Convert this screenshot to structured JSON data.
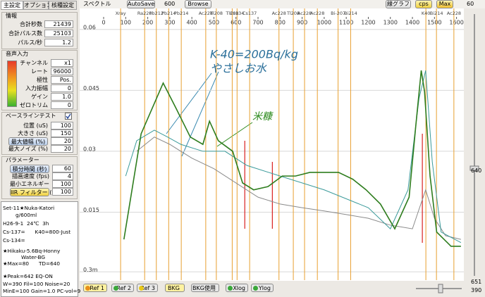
{
  "tabs": [
    "主設定",
    "オプション",
    "核種設定"
  ],
  "info": {
    "title": "情報",
    "rows": [
      [
        "合計秒数",
        "21439"
      ],
      [
        "合計パルス数",
        "25103"
      ],
      [
        "パルス/秒",
        "1.2"
      ]
    ]
  },
  "audio": {
    "title": "音声入力",
    "rows": [
      [
        "チャンネル",
        "x1"
      ],
      [
        "レート",
        "96000"
      ],
      [
        "極性",
        "Pos."
      ],
      [
        "入力振幅",
        "0"
      ],
      [
        "ゲイン",
        "1.0"
      ],
      [
        "ゼロトリム",
        "0"
      ]
    ]
  },
  "baseline": {
    "title": "ベースラインテスト",
    "rows": [
      [
        "位置 (uS)",
        "100"
      ],
      [
        "大きさ (uS)",
        "150"
      ],
      [
        "最大値幅 (%)",
        "20"
      ],
      [
        "最大ノイズ (%)",
        "20"
      ]
    ]
  },
  "params": {
    "title": "パラメーター",
    "rows": [
      [
        "積分時間 (秒)",
        "60"
      ],
      [
        "描画速度 (fps)",
        "4"
      ],
      [
        "最小エネルギー",
        "100"
      ],
      [
        "IIR フィルター (%)",
        "100"
      ]
    ]
  },
  "memo": [
    "Set-11★Nuka-Katori",
    "g/600ml",
    "H26-9-1  24℃  3h",
    "Cs-137=      K40=800-Just",
    "Cs-134=",
    "★Hikaku-5.6Bq-Honny",
    "Water-BG",
    "★Max=80      TD=640",
    "★Peak=642 EQ-ON",
    "W=390 Fil=100 Noise=20",
    "MinE=100 Gain=1.0 PC-vol=9"
  ],
  "toolbar": {
    "title": "スペクトル",
    "autosave": "AutoSave",
    "autosave_value": "600",
    "browse": "Browse",
    "graph": "線グラフ",
    "cps": "cps",
    "max": "Max",
    "max_value": "60"
  },
  "bottom_buttons": [
    "Ref 1",
    "Ref 2",
    "Ref 3",
    "BKG",
    "BKG使用",
    "Xlog",
    "Ylog"
  ],
  "slider_labels": [
    "640",
    "651",
    "390"
  ],
  "chart_data": {
    "type": "line",
    "xlim": [
      0,
      1630
    ],
    "xticks": [
      0,
      100,
      200,
      300,
      400,
      500,
      600,
      700,
      800,
      900,
      1000,
      1100,
      1200,
      1300,
      1400,
      1500,
      1600
    ],
    "ylim": [
      0,
      0.065
    ],
    "yticks": [
      {
        "value": 0.0003,
        "label": "0.3m"
      },
      0.015,
      0.03,
      0.045,
      0.06
    ],
    "grid": true,
    "markers": [
      {
        "energy": 77,
        "label": "Xray"
      },
      {
        "energy": 186,
        "label": "Ra226"
      },
      {
        "energy": 239,
        "label": "Pb212"
      },
      {
        "energy": 295,
        "label": "Pb214"
      },
      {
        "energy": 352,
        "label": "Pb214"
      },
      {
        "energy": 463,
        "label": "Ac228"
      },
      {
        "energy": 511,
        "label": "Tl208"
      },
      {
        "energy": 583,
        "label": "Tl208"
      },
      {
        "energy": 605,
        "label": "Cs134"
      },
      {
        "energy": 662,
        "label": "Cs137"
      },
      {
        "energy": 795,
        "label": "Ac228"
      },
      {
        "energy": 860,
        "label": "Tl208"
      },
      {
        "energy": 911,
        "label": "Ac228"
      },
      {
        "energy": 969,
        "label": "Ac228"
      },
      {
        "energy": 1063,
        "label": "Bi-207"
      },
      {
        "energy": 1120,
        "label": "Bi214"
      },
      {
        "energy": 1461,
        "label": "K40"
      },
      {
        "energy": 1509,
        "label": "Bi214"
      },
      {
        "energy": 1588,
        "label": "Ac228"
      }
    ],
    "roi_lines": [
      640,
      765,
      1445
    ],
    "series": [
      {
        "color": "#2e7d1e",
        "x": [
          92,
          170,
          270,
          330,
          393,
          450,
          480,
          520,
          585,
          630,
          680,
          745,
          810,
          870,
          935,
          1000,
          1065,
          1130,
          1190,
          1255,
          1320,
          1385,
          1415,
          1440,
          1455,
          1480,
          1510,
          1575,
          1620
        ],
        "values": [
          0.0083,
          0.0343,
          0.0468,
          0.0404,
          0.0335,
          0.0317,
          0.0374,
          0.0326,
          0.03,
          0.0222,
          0.0205,
          0.0213,
          0.0239,
          0.0239,
          0.0248,
          0.0248,
          0.0248,
          0.0231,
          0.0205,
          0.017,
          0.0109,
          0.0187,
          0.0361,
          0.0499,
          0.0447,
          0.0239,
          0.0101,
          0.0066,
          0.0066
        ]
      },
      {
        "color": "#3a9a9a",
        "x": [
          100,
          150,
          230,
          290,
          350,
          450,
          550,
          650,
          800,
          1000,
          1200,
          1300,
          1380,
          1430,
          1460,
          1490,
          1530,
          1620
        ],
        "values": [
          0.0239,
          0.0326,
          0.0352,
          0.0335,
          0.0317,
          0.03,
          0.03,
          0.0265,
          0.0239,
          0.0205,
          0.0161,
          0.0109,
          0.0205,
          0.043,
          0.0499,
          0.0274,
          0.0101,
          0.0075
        ]
      },
      {
        "color": "#8a8a8a",
        "x": [
          150,
          230,
          300,
          400,
          500,
          600,
          700,
          800,
          900,
          1000,
          1100,
          1200,
          1300,
          1400,
          1460,
          1500,
          1550,
          1620
        ],
        "values": [
          0.03,
          0.0335,
          0.0317,
          0.0283,
          0.0257,
          0.0222,
          0.0187,
          0.017,
          0.0161,
          0.0153,
          0.0144,
          0.0135,
          0.0118,
          0.0109,
          0.0205,
          0.0135,
          0.0092,
          0.0083
        ]
      }
    ],
    "annotations": [
      {
        "text": "K-40=200Bq/kg",
        "color": "#2a6f9a"
      },
      {
        "text": "やさしお水",
        "color": "#2a6f9a"
      },
      {
        "text": "米糠",
        "color": "#2e8b1e"
      }
    ]
  }
}
